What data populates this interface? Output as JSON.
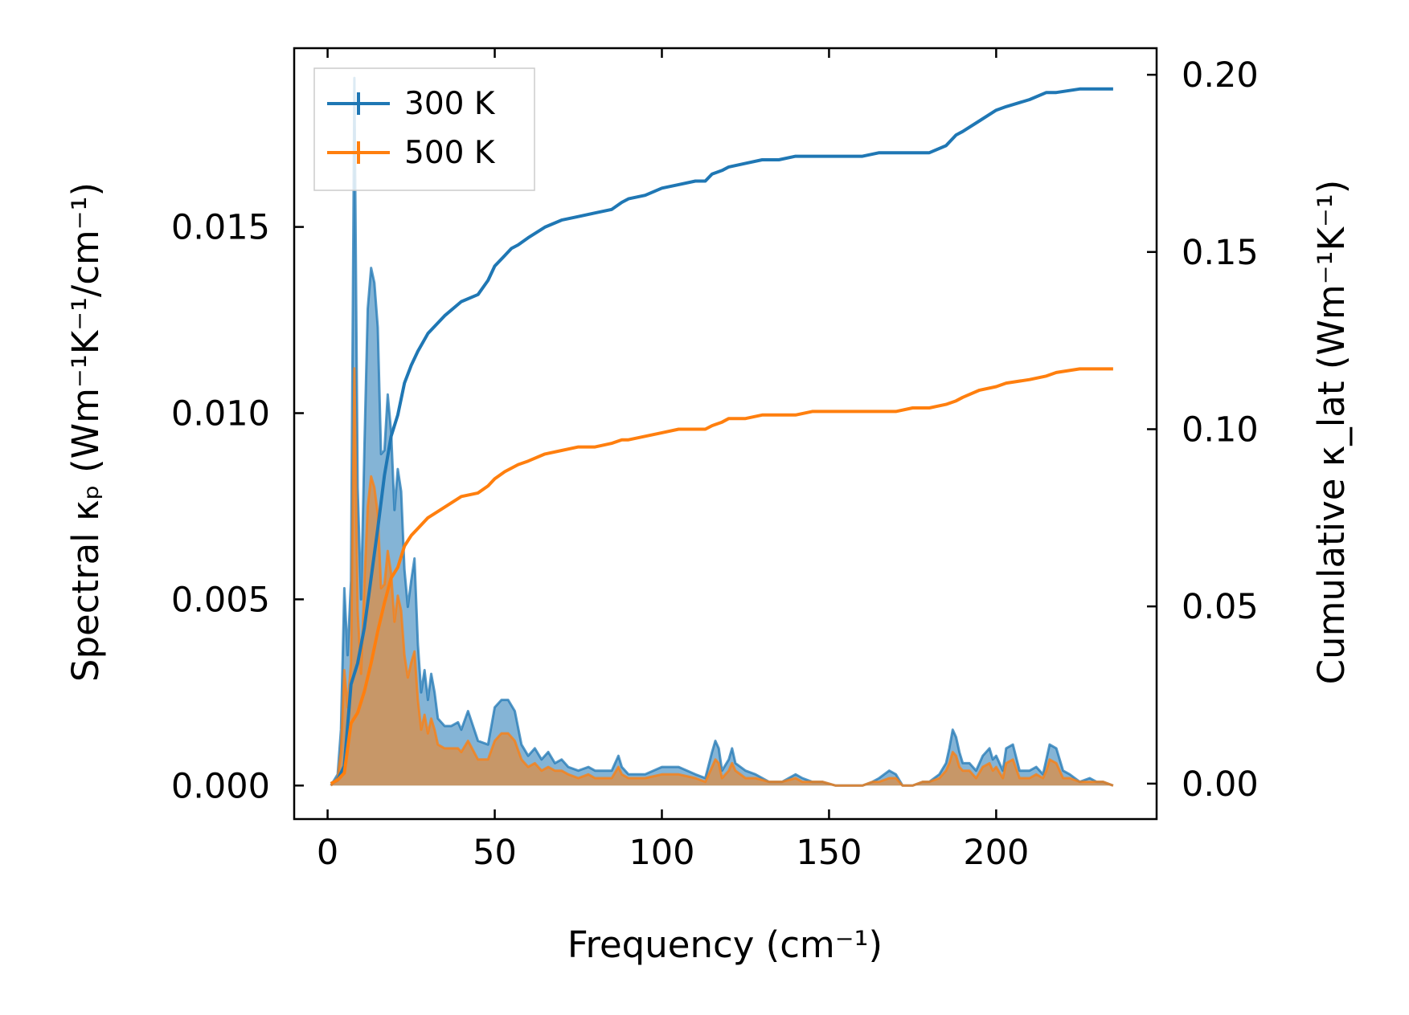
{
  "chart_data": {
    "type": "line",
    "title": "",
    "xlabel": "Frequency (cm⁻¹)",
    "ylabel_left": "Spectral κₚ (Wm⁻¹K⁻¹/cm⁻¹)",
    "ylabel_right": "Cumulative κ_lat (Wm⁻¹K⁻¹)",
    "xlim": [
      -10,
      248
    ],
    "ylim_left": [
      -0.0009,
      0.0198
    ],
    "ylim_right": [
      -0.01,
      0.2075
    ],
    "x_ticks": [
      0,
      50,
      100,
      150,
      200
    ],
    "x_tick_labels": [
      "0",
      "50",
      "100",
      "150",
      "200"
    ],
    "y_left_ticks": [
      0.0,
      0.005,
      0.01,
      0.015
    ],
    "y_left_tick_labels": [
      "0.000",
      "0.005",
      "0.010",
      "0.015"
    ],
    "y_right_ticks": [
      0.0,
      0.05,
      0.1,
      0.15,
      0.2
    ],
    "y_right_tick_labels": [
      "0.00",
      "0.05",
      "0.10",
      "0.15",
      "0.20"
    ],
    "legend": {
      "location": "top-left",
      "entries": [
        "300 K",
        "500 K"
      ]
    },
    "colors": {
      "s300": "#1f77b4",
      "s500": "#ff7f0e"
    },
    "spectral": [
      {
        "name": "300 K",
        "x": [
          1,
          3,
          4,
          5,
          6,
          7,
          8,
          9,
          10,
          11,
          12,
          13,
          14,
          15,
          16,
          17,
          18,
          19,
          20,
          21,
          22,
          23,
          24,
          25,
          26,
          27,
          28,
          29,
          30,
          31,
          32,
          33,
          35,
          37,
          39,
          40,
          42,
          45,
          48,
          50,
          52,
          54,
          56,
          58,
          60,
          62,
          64,
          66,
          68,
          70,
          72,
          75,
          78,
          80,
          85,
          87,
          88,
          90,
          95,
          100,
          105,
          110,
          113,
          115,
          116,
          117,
          118,
          120,
          121,
          122,
          125,
          128,
          132,
          136,
          140,
          142,
          145,
          148,
          152,
          156,
          160,
          163,
          165,
          168,
          170,
          172,
          175,
          178,
          180,
          183,
          185,
          186,
          187,
          188,
          189,
          190,
          192,
          194,
          196,
          198,
          199,
          200,
          202,
          203,
          205,
          207,
          210,
          212,
          214,
          215,
          216,
          218,
          220,
          222,
          225,
          228,
          230,
          232,
          235
        ],
        "values": [
          0.0,
          0.0003,
          0.0015,
          0.0053,
          0.0035,
          0.0055,
          0.019,
          0.008,
          0.005,
          0.009,
          0.0128,
          0.0139,
          0.0135,
          0.0123,
          0.0089,
          0.009,
          0.0105,
          0.0095,
          0.0074,
          0.0085,
          0.0079,
          0.0058,
          0.0048,
          0.0055,
          0.0061,
          0.0038,
          0.0025,
          0.0031,
          0.0023,
          0.003,
          0.0025,
          0.0018,
          0.0016,
          0.0016,
          0.0017,
          0.0015,
          0.002,
          0.0012,
          0.0011,
          0.0021,
          0.0023,
          0.0023,
          0.002,
          0.0011,
          0.0008,
          0.001,
          0.0007,
          0.0009,
          0.0006,
          0.0007,
          0.0005,
          0.0004,
          0.0005,
          0.0004,
          0.0004,
          0.0008,
          0.0005,
          0.0003,
          0.0003,
          0.0005,
          0.0005,
          0.0003,
          0.0002,
          0.0009,
          0.0012,
          0.001,
          0.0004,
          0.0007,
          0.001,
          0.0006,
          0.0004,
          0.0003,
          0.0001,
          0.0001,
          0.0003,
          0.0002,
          0.0001,
          0.0001,
          0.0,
          0.0,
          0.0,
          0.0001,
          0.0002,
          0.0004,
          0.0003,
          0.0,
          0.0,
          0.0001,
          0.0001,
          0.0003,
          0.0006,
          0.001,
          0.0015,
          0.0013,
          0.0009,
          0.0006,
          0.0006,
          0.0004,
          0.0008,
          0.001,
          0.0007,
          0.0008,
          0.0004,
          0.001,
          0.0011,
          0.0004,
          0.0004,
          0.0005,
          0.0003,
          0.0007,
          0.0011,
          0.001,
          0.0004,
          0.0003,
          0.0001,
          0.0002,
          0.0001,
          0.0001,
          0.0
        ]
      },
      {
        "name": "500 K",
        "x": [
          1,
          3,
          4,
          5,
          6,
          7,
          8,
          9,
          10,
          11,
          12,
          13,
          14,
          15,
          16,
          17,
          18,
          19,
          20,
          21,
          22,
          23,
          24,
          25,
          26,
          27,
          28,
          29,
          30,
          31,
          32,
          33,
          35,
          37,
          39,
          40,
          42,
          45,
          48,
          50,
          52,
          54,
          56,
          58,
          60,
          62,
          64,
          66,
          68,
          70,
          72,
          75,
          78,
          80,
          85,
          87,
          88,
          90,
          95,
          100,
          105,
          110,
          113,
          115,
          116,
          117,
          118,
          120,
          121,
          122,
          125,
          128,
          132,
          136,
          140,
          142,
          145,
          148,
          152,
          156,
          160,
          163,
          165,
          168,
          170,
          172,
          175,
          178,
          180,
          183,
          185,
          186,
          187,
          188,
          189,
          190,
          192,
          194,
          196,
          198,
          199,
          200,
          202,
          203,
          205,
          207,
          210,
          212,
          214,
          215,
          216,
          218,
          220,
          222,
          225,
          228,
          230,
          232,
          235
        ],
        "values": [
          0.0,
          0.0002,
          0.0009,
          0.0031,
          0.0021,
          0.0033,
          0.0112,
          0.0047,
          0.003,
          0.0054,
          0.0075,
          0.0083,
          0.008,
          0.0073,
          0.0053,
          0.0054,
          0.0063,
          0.0057,
          0.0044,
          0.0051,
          0.0047,
          0.0035,
          0.0029,
          0.0033,
          0.0036,
          0.0023,
          0.0015,
          0.0019,
          0.0014,
          0.0018,
          0.0015,
          0.0011,
          0.001,
          0.001,
          0.001,
          0.0009,
          0.0012,
          0.0007,
          0.0007,
          0.0012,
          0.0014,
          0.0014,
          0.0012,
          0.0007,
          0.0005,
          0.0006,
          0.0004,
          0.0005,
          0.0004,
          0.0004,
          0.0003,
          0.0002,
          0.0003,
          0.0002,
          0.0002,
          0.0005,
          0.0003,
          0.0002,
          0.0002,
          0.0003,
          0.0003,
          0.0002,
          0.0001,
          0.0005,
          0.0007,
          0.0006,
          0.0002,
          0.0004,
          0.0006,
          0.0004,
          0.0002,
          0.0002,
          0.0001,
          0.0001,
          0.0002,
          0.0001,
          0.0001,
          0.0001,
          0.0,
          0.0,
          0.0,
          0.0001,
          0.0001,
          0.0002,
          0.0002,
          0.0,
          0.0,
          0.0001,
          0.0001,
          0.0002,
          0.0004,
          0.0006,
          0.0009,
          0.0008,
          0.0005,
          0.0004,
          0.0004,
          0.0002,
          0.0005,
          0.0006,
          0.0004,
          0.0005,
          0.0002,
          0.0006,
          0.0007,
          0.0002,
          0.0002,
          0.0003,
          0.0002,
          0.0004,
          0.0007,
          0.0006,
          0.0002,
          0.0002,
          0.0001,
          0.0001,
          0.0001,
          0.0001,
          0.0
        ]
      }
    ],
    "cumulative": [
      {
        "name": "300 K",
        "x": [
          1,
          3,
          5,
          7,
          9,
          11,
          13,
          15,
          17,
          19,
          21,
          23,
          25,
          27,
          30,
          35,
          40,
          45,
          48,
          50,
          53,
          55,
          57,
          60,
          65,
          70,
          75,
          80,
          85,
          88,
          90,
          95,
          100,
          105,
          110,
          113,
          115,
          118,
          120,
          125,
          130,
          135,
          140,
          145,
          150,
          160,
          165,
          170,
          175,
          180,
          185,
          188,
          190,
          195,
          200,
          203,
          210,
          215,
          218,
          225,
          230,
          235
        ],
        "values": [
          0.0,
          0.001,
          0.005,
          0.028,
          0.034,
          0.044,
          0.058,
          0.072,
          0.087,
          0.098,
          0.104,
          0.113,
          0.118,
          0.122,
          0.127,
          0.132,
          0.136,
          0.138,
          0.142,
          0.146,
          0.149,
          0.151,
          0.152,
          0.154,
          0.157,
          0.159,
          0.16,
          0.161,
          0.162,
          0.164,
          0.165,
          0.166,
          0.168,
          0.169,
          0.17,
          0.17,
          0.172,
          0.173,
          0.174,
          0.175,
          0.176,
          0.176,
          0.177,
          0.177,
          0.177,
          0.177,
          0.178,
          0.178,
          0.178,
          0.178,
          0.18,
          0.183,
          0.184,
          0.187,
          0.19,
          0.191,
          0.193,
          0.195,
          0.195,
          0.196,
          0.196,
          0.196
        ]
      },
      {
        "name": "500 K",
        "x": [
          1,
          3,
          5,
          7,
          9,
          11,
          13,
          15,
          17,
          19,
          21,
          23,
          25,
          27,
          30,
          35,
          40,
          45,
          48,
          50,
          53,
          55,
          57,
          60,
          65,
          70,
          75,
          80,
          85,
          88,
          90,
          95,
          100,
          105,
          110,
          113,
          115,
          118,
          120,
          125,
          130,
          135,
          140,
          145,
          150,
          160,
          165,
          170,
          175,
          180,
          185,
          188,
          190,
          195,
          200,
          203,
          210,
          215,
          218,
          225,
          230,
          235
        ],
        "values": [
          0.0,
          0.001,
          0.003,
          0.017,
          0.02,
          0.026,
          0.034,
          0.043,
          0.051,
          0.058,
          0.061,
          0.067,
          0.07,
          0.072,
          0.075,
          0.078,
          0.081,
          0.082,
          0.084,
          0.086,
          0.088,
          0.089,
          0.09,
          0.091,
          0.093,
          0.094,
          0.095,
          0.095,
          0.096,
          0.097,
          0.097,
          0.098,
          0.099,
          0.1,
          0.1,
          0.1,
          0.101,
          0.102,
          0.103,
          0.103,
          0.104,
          0.104,
          0.104,
          0.105,
          0.105,
          0.105,
          0.105,
          0.105,
          0.106,
          0.106,
          0.107,
          0.108,
          0.109,
          0.111,
          0.112,
          0.113,
          0.114,
          0.115,
          0.116,
          0.117,
          0.117,
          0.117
        ]
      }
    ]
  }
}
